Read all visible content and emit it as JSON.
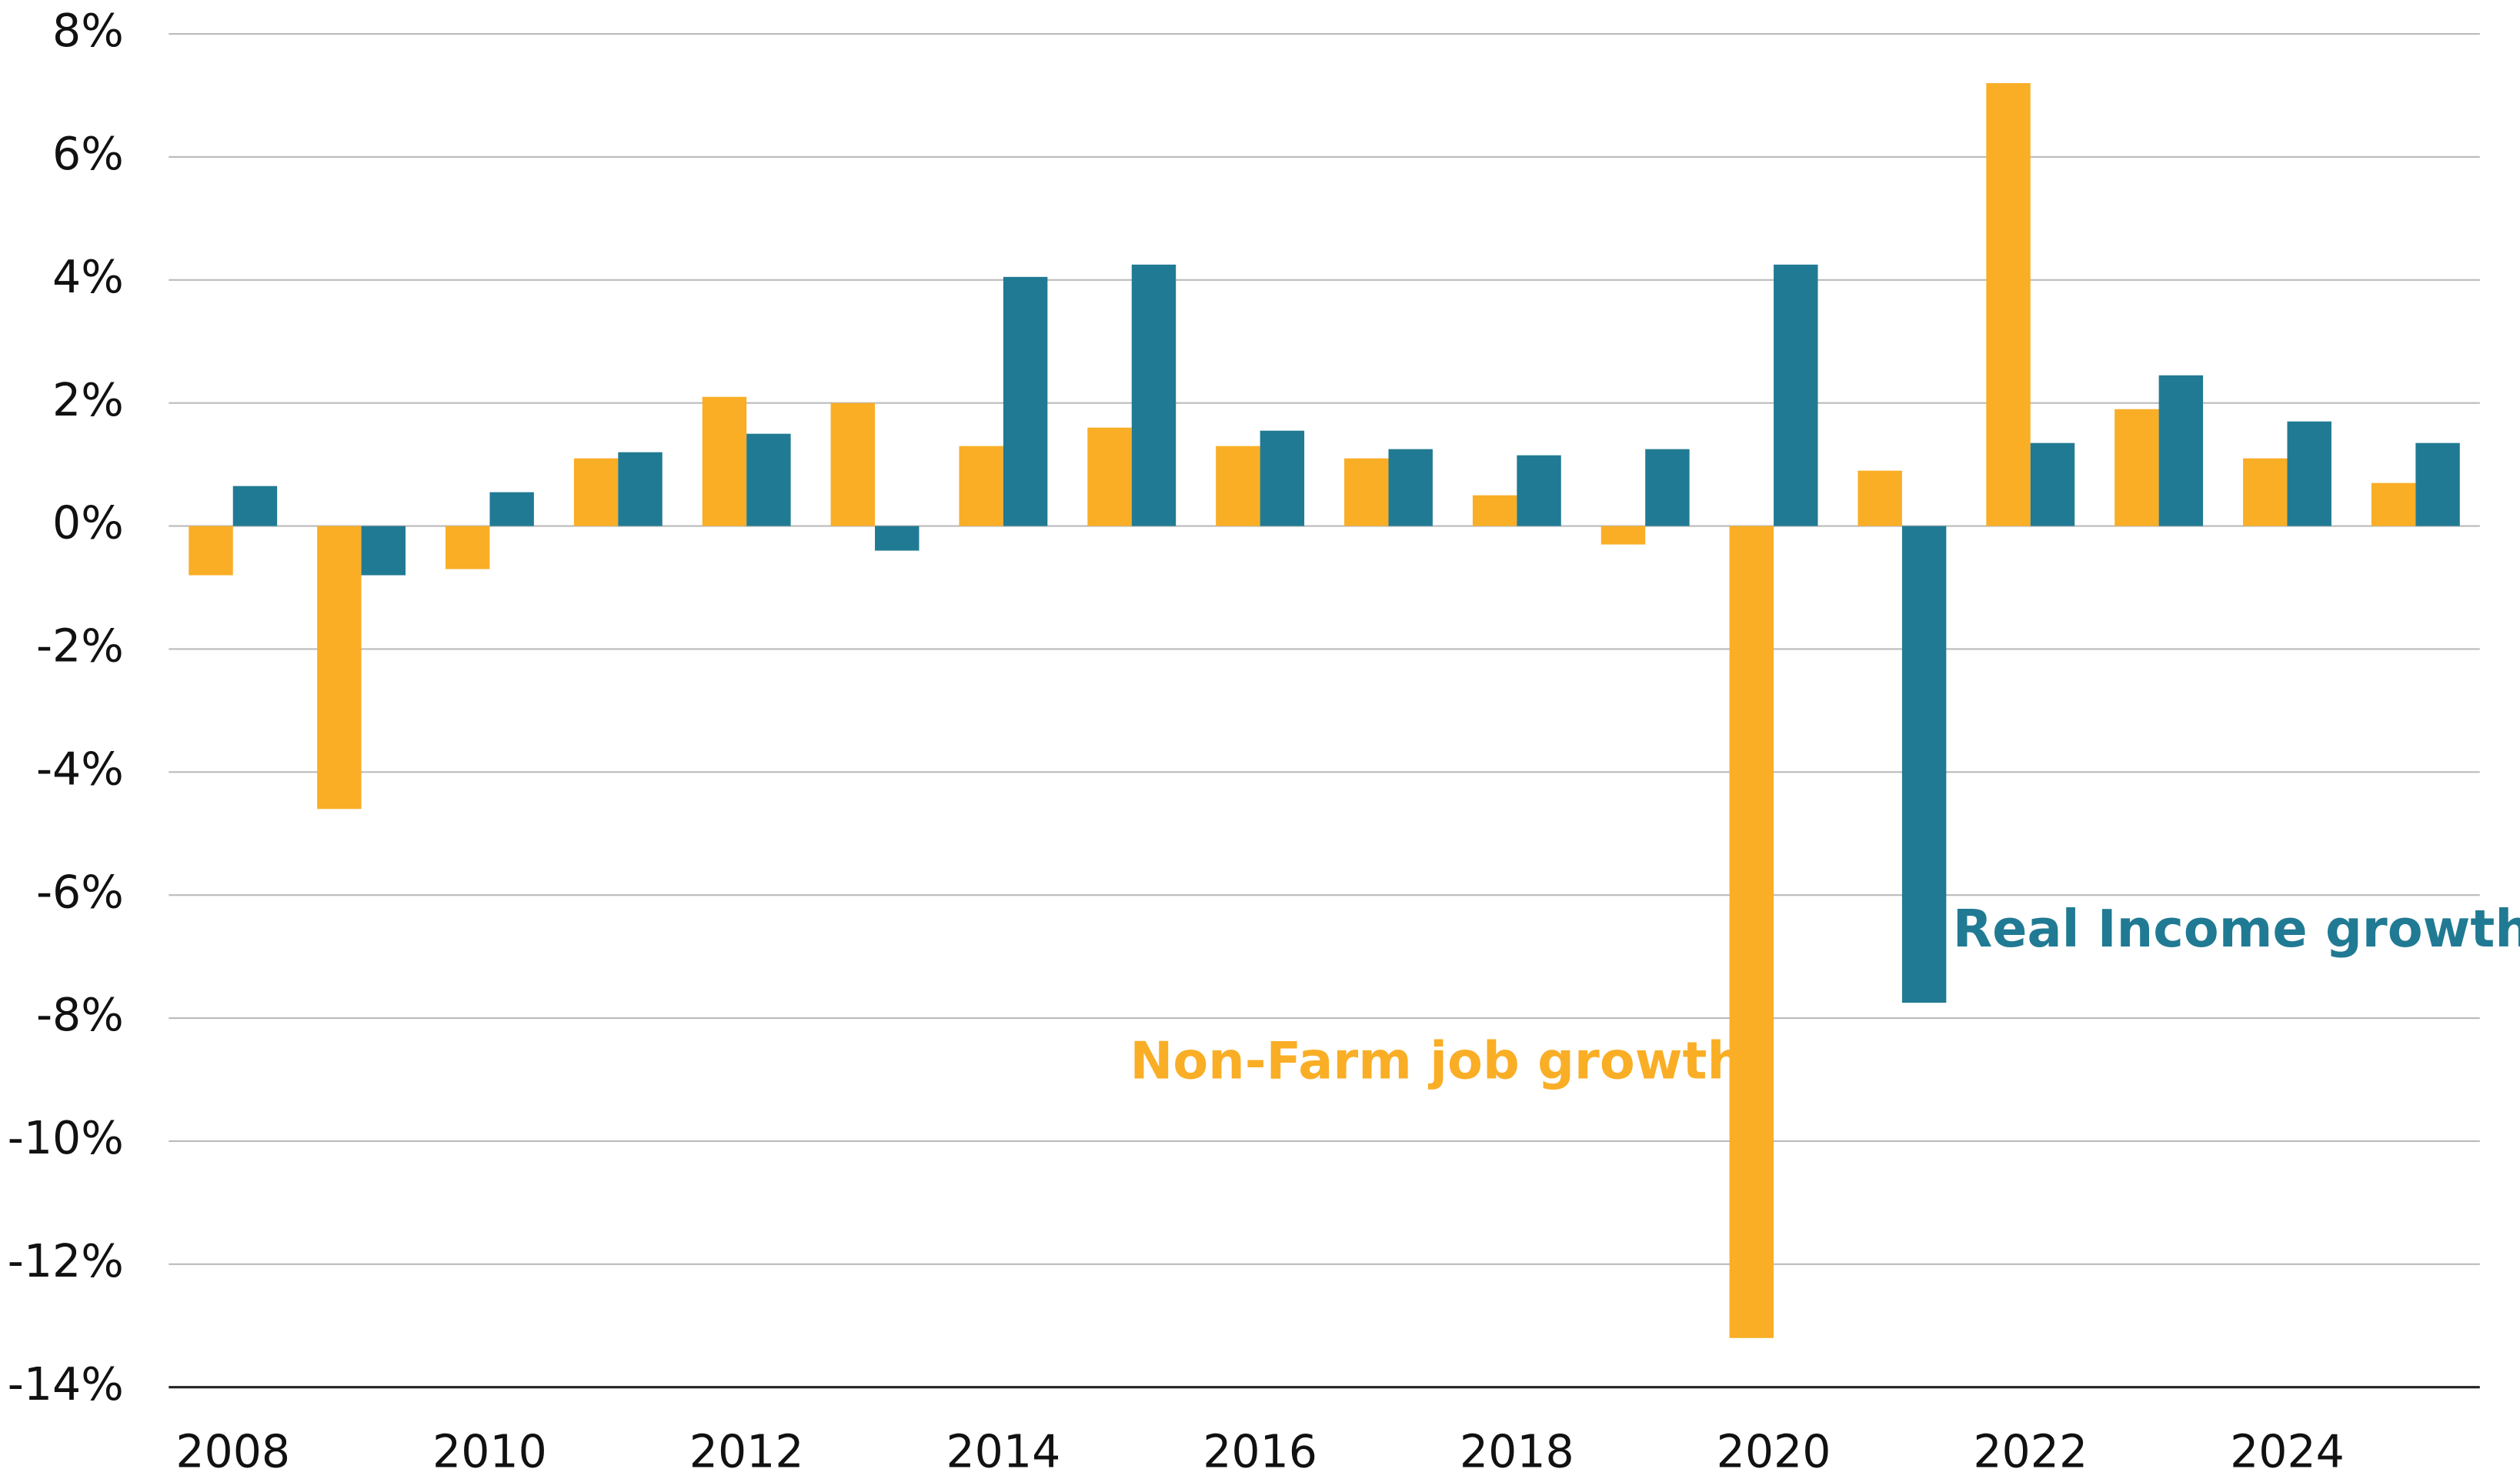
{
  "chart_data": {
    "type": "bar",
    "categories": [
      "2008",
      null,
      "2010",
      null,
      "2012",
      null,
      "2014",
      null,
      "2016",
      null,
      "2018",
      null,
      "2020",
      null,
      "2022",
      null,
      "2024",
      null
    ],
    "series": [
      {
        "name": "Non-Farm job growth",
        "color": "#f9ae26",
        "values": [
          -0.8,
          -4.6,
          -0.7,
          1.1,
          2.1,
          2.0,
          1.3,
          1.6,
          1.3,
          1.1,
          0.5,
          -0.3,
          -13.2,
          0.9,
          7.2,
          1.9,
          1.1,
          0.7
        ]
      },
      {
        "name": "Real Income growth",
        "color": "#217a93",
        "values": [
          0.65,
          -0.8,
          0.55,
          1.2,
          1.5,
          -0.4,
          4.05,
          4.25,
          1.55,
          1.25,
          1.15,
          1.25,
          4.25,
          -7.75,
          1.35,
          2.45,
          1.7,
          1.35
        ]
      }
    ],
    "ylim": [
      -14,
      8
    ],
    "yticks": [
      {
        "value": -14,
        "label": "-14%"
      },
      {
        "value": -12,
        "label": "-12%"
      },
      {
        "value": -10,
        "label": "-10%"
      },
      {
        "value": -8,
        "label": "-8%"
      },
      {
        "value": -6,
        "label": "-6%"
      },
      {
        "value": -4,
        "label": "-4%"
      },
      {
        "value": -2,
        "label": "-2%"
      },
      {
        "value": 0,
        "label": "0%"
      },
      {
        "value": 2,
        "label": "2%"
      },
      {
        "value": 4,
        "label": "4%"
      },
      {
        "value": 6,
        "label": "6%"
      },
      {
        "value": 8,
        "label": "8%"
      }
    ],
    "grid": true
  }
}
